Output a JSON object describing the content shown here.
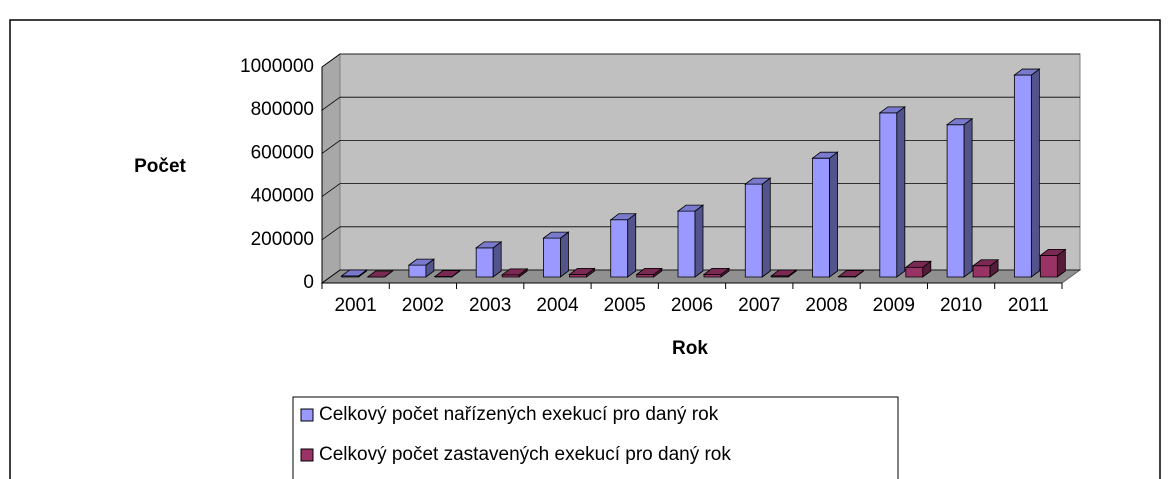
{
  "chart_data": {
    "type": "bar3d",
    "x_label": "Rok",
    "y_label": "Počet",
    "categories": [
      "2001",
      "2002",
      "2003",
      "2004",
      "2005",
      "2006",
      "2007",
      "2008",
      "2009",
      "2010",
      "2011"
    ],
    "series": [
      {
        "name": "Celkový počet nařízených exekucí pro daný rok",
        "color": "#9999ff",
        "values": [
          5000,
          55000,
          135000,
          180000,
          265000,
          305000,
          430000,
          550000,
          760000,
          705000,
          935000
        ]
      },
      {
        "name": "Celkový počet zastavených exekucí pro daný rok",
        "color": "#993366",
        "values": [
          0,
          2000,
          10000,
          12000,
          12000,
          12000,
          5000,
          2000,
          45000,
          52000,
          100000
        ]
      }
    ],
    "ylim": [
      0,
      1000000
    ],
    "yticks": [
      0,
      200000,
      400000,
      600000,
      800000,
      1000000
    ],
    "grid": true
  }
}
